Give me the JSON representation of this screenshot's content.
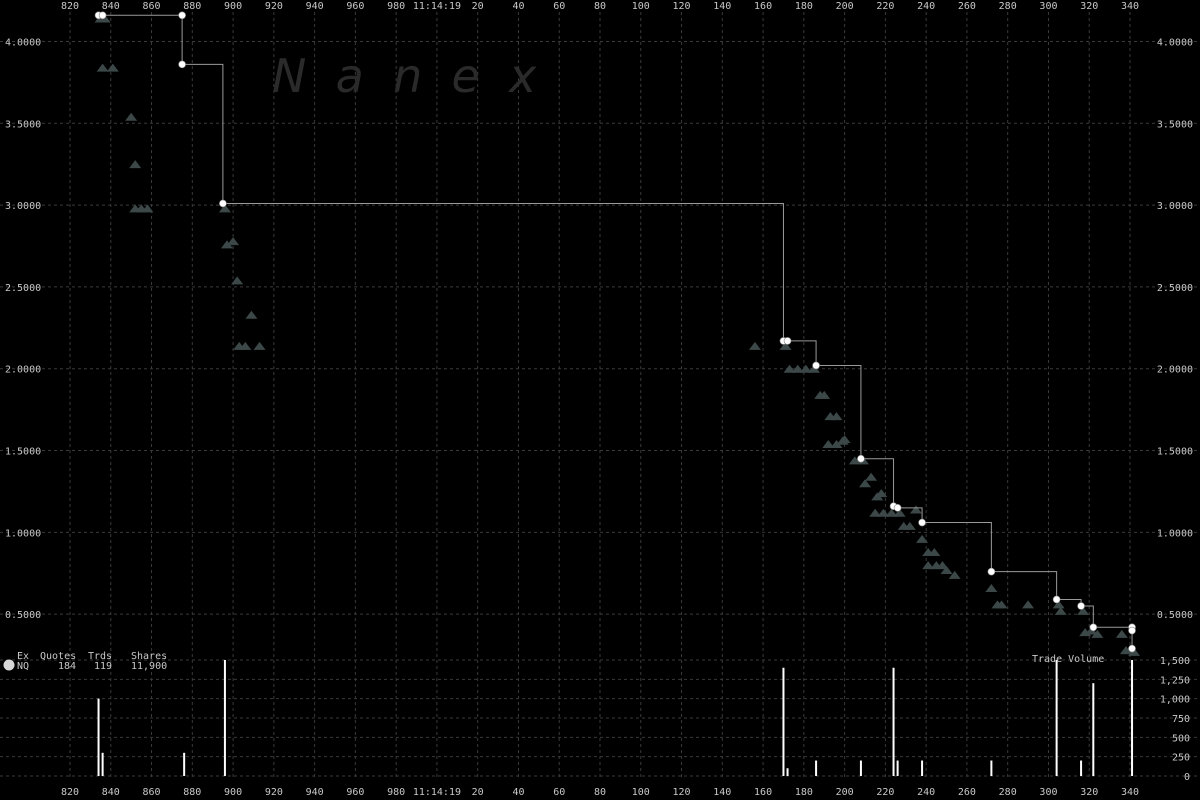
{
  "watermark": "N  a  n  e  x",
  "stats": {
    "headers": [
      "Ex",
      "Quotes",
      "Trds",
      "Shares"
    ],
    "row": {
      "ex": "NQ",
      "quotes": "184",
      "trades": "119",
      "shares": "11,900"
    }
  },
  "volume_label": "Trade Volume",
  "chart_data": {
    "type": "scatter",
    "x_ticks": [
      "820",
      "840",
      "860",
      "880",
      "900",
      "920",
      "940",
      "960",
      "980",
      "11:14:19",
      "20",
      "40",
      "60",
      "80",
      "100",
      "120",
      "140",
      "160",
      "180",
      "200",
      "220",
      "240",
      "260",
      "280",
      "300",
      "320",
      "340"
    ],
    "y_ticks": [
      "0.5000",
      "1.0000",
      "1.5000",
      "2.0000",
      "2.5000",
      "3.0000",
      "3.5000",
      "4.0000"
    ],
    "ylim": [
      0.22,
      4.18
    ],
    "volume_ticks": [
      "0",
      "250",
      "500",
      "750",
      "1,000",
      "1,250",
      "1,500"
    ],
    "volume_ylim": [
      0,
      1500
    ],
    "colors": {
      "trade": "#ffffff",
      "quote": "#3c4848",
      "grid": "#3a3a3a",
      "text": "#c8c8c8"
    },
    "series": [
      {
        "name": "trades",
        "points": [
          {
            "x": 834,
            "y": 4.16
          },
          {
            "x": 836,
            "y": 4.16
          },
          {
            "x": 875,
            "y": 4.16
          },
          {
            "x": 875,
            "y": 3.86
          },
          {
            "x": 895,
            "y": 3.01
          },
          {
            "x": 170,
            "y": 2.17
          },
          {
            "x": 172,
            "y": 2.17
          },
          {
            "x": 186,
            "y": 2.02
          },
          {
            "x": 208,
            "y": 1.45
          },
          {
            "x": 224,
            "y": 1.16
          },
          {
            "x": 226,
            "y": 1.15
          },
          {
            "x": 238,
            "y": 1.06
          },
          {
            "x": 272,
            "y": 0.76
          },
          {
            "x": 304,
            "y": 0.59
          },
          {
            "x": 316,
            "y": 0.55
          },
          {
            "x": 322,
            "y": 0.42
          },
          {
            "x": 341,
            "y": 0.42
          },
          {
            "x": 341,
            "y": 0.4
          },
          {
            "x": 341,
            "y": 0.29
          }
        ]
      },
      {
        "name": "quotes",
        "points": [
          {
            "x": 835,
            "y": 4.14
          },
          {
            "x": 837,
            "y": 4.14
          },
          {
            "x": 836,
            "y": 3.84
          },
          {
            "x": 841,
            "y": 3.84
          },
          {
            "x": 850,
            "y": 3.54
          },
          {
            "x": 852,
            "y": 3.25
          },
          {
            "x": 852,
            "y": 2.98
          },
          {
            "x": 855,
            "y": 2.98
          },
          {
            "x": 858,
            "y": 2.98
          },
          {
            "x": 896,
            "y": 2.98
          },
          {
            "x": 897,
            "y": 2.76
          },
          {
            "x": 900,
            "y": 2.78
          },
          {
            "x": 902,
            "y": 2.54
          },
          {
            "x": 903,
            "y": 2.14
          },
          {
            "x": 906,
            "y": 2.14
          },
          {
            "x": 909,
            "y": 2.33
          },
          {
            "x": 913,
            "y": 2.14
          },
          {
            "x": 156,
            "y": 2.14
          },
          {
            "x": 171,
            "y": 2.14
          },
          {
            "x": 173,
            "y": 2.0
          },
          {
            "x": 177,
            "y": 2.0
          },
          {
            "x": 181,
            "y": 2.0
          },
          {
            "x": 185,
            "y": 2.0
          },
          {
            "x": 188,
            "y": 1.84
          },
          {
            "x": 190,
            "y": 1.84
          },
          {
            "x": 193,
            "y": 1.71
          },
          {
            "x": 196,
            "y": 1.71
          },
          {
            "x": 192,
            "y": 1.54
          },
          {
            "x": 196,
            "y": 1.54
          },
          {
            "x": 199,
            "y": 1.56
          },
          {
            "x": 200,
            "y": 1.57
          },
          {
            "x": 205,
            "y": 1.44
          },
          {
            "x": 209,
            "y": 1.44
          },
          {
            "x": 210,
            "y": 1.3
          },
          {
            "x": 213,
            "y": 1.34
          },
          {
            "x": 216,
            "y": 1.22
          },
          {
            "x": 218,
            "y": 1.24
          },
          {
            "x": 215,
            "y": 1.12
          },
          {
            "x": 219,
            "y": 1.12
          },
          {
            "x": 223,
            "y": 1.12
          },
          {
            "x": 227,
            "y": 1.12
          },
          {
            "x": 229,
            "y": 1.04
          },
          {
            "x": 232,
            "y": 1.04
          },
          {
            "x": 235,
            "y": 1.14
          },
          {
            "x": 238,
            "y": 0.96
          },
          {
            "x": 241,
            "y": 0.88
          },
          {
            "x": 244,
            "y": 0.88
          },
          {
            "x": 241,
            "y": 0.8
          },
          {
            "x": 245,
            "y": 0.8
          },
          {
            "x": 248,
            "y": 0.8
          },
          {
            "x": 250,
            "y": 0.77
          },
          {
            "x": 254,
            "y": 0.74
          },
          {
            "x": 272,
            "y": 0.66
          },
          {
            "x": 275,
            "y": 0.56
          },
          {
            "x": 277,
            "y": 0.56
          },
          {
            "x": 290,
            "y": 0.56
          },
          {
            "x": 305,
            "y": 0.56
          },
          {
            "x": 306,
            "y": 0.52
          },
          {
            "x": 317,
            "y": 0.52
          },
          {
            "x": 318,
            "y": 0.39
          },
          {
            "x": 321,
            "y": 0.4
          },
          {
            "x": 324,
            "y": 0.38
          },
          {
            "x": 336,
            "y": 0.38
          },
          {
            "x": 338,
            "y": 0.28
          },
          {
            "x": 340,
            "y": 0.28
          },
          {
            "x": 342,
            "y": 0.27
          }
        ]
      },
      {
        "name": "volume",
        "points": [
          {
            "x": 834,
            "y": 1000
          },
          {
            "x": 836,
            "y": 300
          },
          {
            "x": 876,
            "y": 300
          },
          {
            "x": 896,
            "y": 1500
          },
          {
            "x": 170,
            "y": 1400
          },
          {
            "x": 172,
            "y": 100
          },
          {
            "x": 186,
            "y": 200
          },
          {
            "x": 208,
            "y": 200
          },
          {
            "x": 224,
            "y": 1400
          },
          {
            "x": 226,
            "y": 200
          },
          {
            "x": 238,
            "y": 200
          },
          {
            "x": 272,
            "y": 200
          },
          {
            "x": 304,
            "y": 1500
          },
          {
            "x": 316,
            "y": 200
          },
          {
            "x": 322,
            "y": 1200
          },
          {
            "x": 341,
            "y": 1500
          }
        ]
      }
    ]
  }
}
